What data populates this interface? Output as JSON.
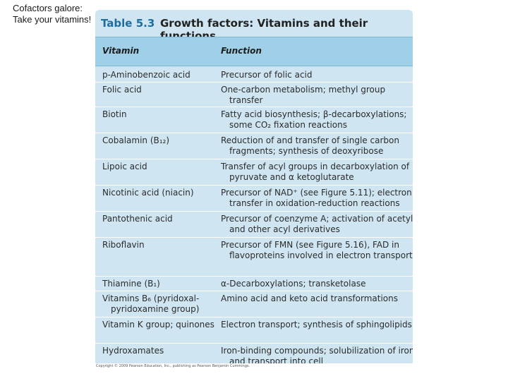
{
  "slide": {
    "title": "Cofactors galore:\nTake your vitamins!"
  },
  "table": {
    "number": "Table 5.3",
    "title": "Growth factors: Vitamins and their functions",
    "headers": {
      "vitamin": "Vitamin",
      "function": "Function"
    },
    "rows": [
      {
        "vitamin": "p-Aminobenzoic acid",
        "function": "Precursor of folic acid"
      },
      {
        "vitamin": "Folic acid",
        "function": "One-carbon metabolism; methyl group transfer"
      },
      {
        "vitamin": "Biotin",
        "function": "Fatty acid biosynthesis; β-decarboxylations; some CO₂ fixation reactions"
      },
      {
        "vitamin": "Cobalamin (B₁₂)",
        "function": "Reduction of and transfer of single carbon fragments; synthesis of deoxyribose"
      },
      {
        "vitamin": "Lipoic acid",
        "function": "Transfer of acyl groups in decarboxylation of pyruvate and α ketoglutarate"
      },
      {
        "vitamin": "Nicotinic acid (niacin)",
        "function": "Precursor of NAD⁺ (see Figure 5.11); electron transfer in oxidation-reduction reactions"
      },
      {
        "vitamin": "Pantothenic acid",
        "function": "Precursor of coenzyme A; activation of acetyl and other acyl derivatives"
      },
      {
        "vitamin": "Riboflavin",
        "function": "Precursor of FMN (see Figure 5.16), FAD in flavoproteins involved in electron transport"
      },
      {
        "vitamin": "Thiamine (B₁)",
        "function": "α-Decarboxylations; transketolase"
      },
      {
        "vitamin": "Vitamins B₆ (pyridoxal-pyridoxamine group)",
        "function": "Amino acid and keto acid transformations"
      },
      {
        "vitamin": "Vitamin K group; quinones",
        "function": "Electron transport; synthesis of sphingolipids"
      },
      {
        "vitamin": "Hydroxamates",
        "function": "Iron-binding compounds; solubilization of iron and transport into cell"
      }
    ],
    "copyright": "Copyright © 2009 Pearson Education, Inc., publishing as Pearson Benjamin Cummings."
  }
}
